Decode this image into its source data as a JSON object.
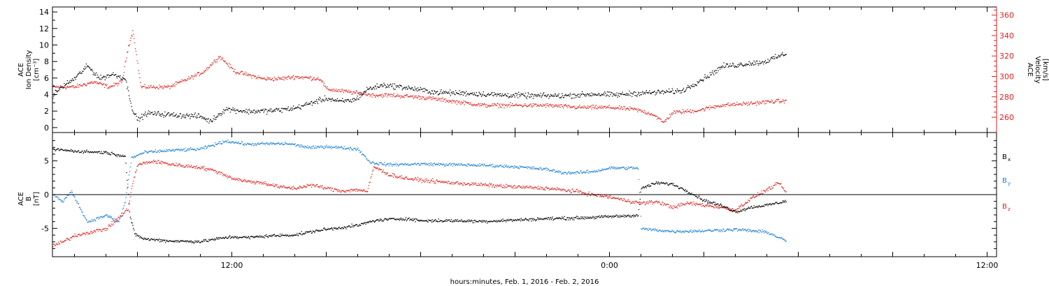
{
  "figure": {
    "xlabel": "hours:minutes, Feb.  1, 2016 - Feb.  2, 2016",
    "x_tick_labels": [
      {
        "hour": 12,
        "label": "12:00"
      },
      {
        "hour": 24,
        "label": "0:00"
      },
      {
        "hour": 36,
        "label": "12:00"
      }
    ],
    "xlim_hours": [
      6.3,
      36.3
    ],
    "data_end_hour": 29.6
  },
  "chart_data": [
    {
      "type": "scatter",
      "panel": "top",
      "ylabel_left": [
        "ACE",
        "Ion Density",
        "[cm⁻³]"
      ],
      "ylabel_right": [
        "ACE",
        "Velocity",
        "[km/s]"
      ],
      "ylim_left": [
        -0.6,
        14.6
      ],
      "yticks_left": [
        0,
        2,
        4,
        6,
        8,
        10,
        12,
        14
      ],
      "ylim_right": [
        245,
        368
      ],
      "yticks_right": [
        260,
        280,
        300,
        320,
        340,
        360
      ],
      "series": [
        {
          "name": "Ion Density",
          "axis": "left",
          "color": "#000000",
          "points": [
            [
              6.3,
              4.0
            ],
            [
              6.6,
              5.0
            ],
            [
              7.0,
              6.0
            ],
            [
              7.4,
              7.5
            ],
            [
              7.8,
              6.0
            ],
            [
              8.2,
              6.5
            ],
            [
              8.6,
              6.0
            ],
            [
              8.85,
              2.0
            ],
            [
              9.0,
              1.0
            ],
            [
              9.3,
              1.8
            ],
            [
              10.0,
              1.6
            ],
            [
              11.0,
              1.4
            ],
            [
              11.3,
              0.8
            ],
            [
              11.8,
              2.3
            ],
            [
              12.5,
              2.0
            ],
            [
              13.3,
              2.1
            ],
            [
              14.0,
              2.4
            ],
            [
              14.5,
              3.0
            ],
            [
              15.0,
              3.6
            ],
            [
              15.4,
              3.2
            ],
            [
              15.9,
              3.4
            ],
            [
              16.3,
              4.7
            ],
            [
              16.8,
              5.2
            ],
            [
              17.5,
              4.9
            ],
            [
              18.5,
              4.3
            ],
            [
              19.5,
              4.2
            ],
            [
              20.5,
              4.0
            ],
            [
              21.5,
              3.9
            ],
            [
              22.5,
              3.9
            ],
            [
              23.5,
              4.1
            ],
            [
              24.2,
              4.0
            ],
            [
              24.8,
              4.2
            ],
            [
              25.5,
              4.3
            ],
            [
              26.3,
              4.5
            ],
            [
              26.8,
              5.6
            ],
            [
              27.2,
              6.5
            ],
            [
              27.6,
              7.5
            ],
            [
              28.0,
              7.6
            ],
            [
              28.4,
              7.8
            ],
            [
              28.9,
              8.0
            ],
            [
              29.6,
              9.0
            ]
          ]
        },
        {
          "name": "Velocity",
          "axis": "right",
          "color": "#e02020",
          "points": [
            [
              6.3,
              290
            ],
            [
              7.0,
              290
            ],
            [
              7.6,
              295
            ],
            [
              8.1,
              290
            ],
            [
              8.5,
              295
            ],
            [
              8.7,
              330
            ],
            [
              8.85,
              345
            ],
            [
              9.1,
              290
            ],
            [
              10.0,
              290
            ],
            [
              10.6,
              298
            ],
            [
              11.1,
              305
            ],
            [
              11.6,
              320
            ],
            [
              12.1,
              305
            ],
            [
              13.0,
              298
            ],
            [
              13.5,
              298
            ],
            [
              14.0,
              300
            ],
            [
              14.8,
              298
            ],
            [
              15.0,
              288
            ],
            [
              16.0,
              284
            ],
            [
              16.5,
              282
            ],
            [
              17.0,
              282
            ],
            [
              18.0,
              280
            ],
            [
              19.0,
              276
            ],
            [
              20.0,
              272
            ],
            [
              21.0,
              272
            ],
            [
              22.0,
              272
            ],
            [
              23.0,
              270
            ],
            [
              24.0,
              270
            ],
            [
              24.8,
              268
            ],
            [
              25.4,
              263
            ],
            [
              25.7,
              255
            ],
            [
              26.0,
              265
            ],
            [
              26.8,
              267
            ],
            [
              27.5,
              272
            ],
            [
              28.5,
              274
            ],
            [
              29.2,
              276
            ],
            [
              29.6,
              276
            ]
          ]
        }
      ]
    },
    {
      "type": "scatter",
      "panel": "bottom",
      "ylabel_left": [
        "ACE",
        "B",
        "[nT]"
      ],
      "ylim": [
        -9.2,
        9.2
      ],
      "yticks": [
        -5,
        0,
        5
      ],
      "series": [
        {
          "name": "Bx",
          "label": "B",
          "subscript": "x",
          "color": "#000000",
          "points": [
            [
              6.3,
              6.8
            ],
            [
              7.0,
              6.5
            ],
            [
              7.5,
              6.4
            ],
            [
              8.0,
              6.3
            ],
            [
              8.3,
              6.0
            ],
            [
              8.6,
              5.8
            ],
            [
              8.75,
              -3.0
            ],
            [
              8.9,
              -5.8
            ],
            [
              9.2,
              -6.5
            ],
            [
              10.0,
              -6.8
            ],
            [
              11.0,
              -6.9
            ],
            [
              11.5,
              -6.5
            ],
            [
              12.0,
              -6.2
            ],
            [
              12.5,
              -6.3
            ],
            [
              13.0,
              -6.1
            ],
            [
              14.0,
              -5.9
            ],
            [
              14.8,
              -5.2
            ],
            [
              15.5,
              -4.8
            ],
            [
              16.0,
              -4.5
            ],
            [
              16.5,
              -3.8
            ],
            [
              17.0,
              -3.6
            ],
            [
              17.5,
              -3.5
            ],
            [
              18.0,
              -3.8
            ],
            [
              19.0,
              -3.8
            ],
            [
              20.0,
              -3.9
            ],
            [
              21.0,
              -3.7
            ],
            [
              22.0,
              -3.5
            ],
            [
              23.0,
              -3.4
            ],
            [
              24.0,
              -3.2
            ],
            [
              24.9,
              -3.0
            ],
            [
              25.0,
              1.0
            ],
            [
              25.5,
              1.8
            ],
            [
              26.0,
              1.6
            ],
            [
              26.5,
              0.5
            ],
            [
              27.0,
              -0.8
            ],
            [
              27.5,
              -1.5
            ],
            [
              28.0,
              -2.5
            ],
            [
              28.5,
              -1.8
            ],
            [
              29.0,
              -1.5
            ],
            [
              29.6,
              -0.9
            ]
          ]
        },
        {
          "name": "By",
          "label": "B",
          "subscript": "y",
          "color": "#1a7fd6",
          "points": [
            [
              6.3,
              0.2
            ],
            [
              6.6,
              -1.0
            ],
            [
              6.9,
              0.5
            ],
            [
              7.4,
              -4.0
            ],
            [
              8.0,
              -3.0
            ],
            [
              8.4,
              -4.0
            ],
            [
              8.6,
              -1.0
            ],
            [
              8.8,
              5.5
            ],
            [
              9.2,
              6.3
            ],
            [
              10.0,
              6.6
            ],
            [
              11.0,
              6.8
            ],
            [
              11.8,
              8.0
            ],
            [
              12.5,
              7.5
            ],
            [
              13.0,
              7.6
            ],
            [
              13.8,
              7.6
            ],
            [
              14.5,
              7.0
            ],
            [
              15.0,
              7.2
            ],
            [
              15.5,
              7.0
            ],
            [
              16.0,
              6.8
            ],
            [
              16.4,
              4.8
            ],
            [
              17.0,
              4.5
            ],
            [
              18.0,
              4.6
            ],
            [
              19.0,
              4.5
            ],
            [
              20.0,
              4.4
            ],
            [
              21.0,
              4.2
            ],
            [
              22.0,
              3.8
            ],
            [
              22.5,
              3.3
            ],
            [
              23.0,
              3.3
            ],
            [
              23.5,
              3.5
            ],
            [
              24.0,
              4.0
            ],
            [
              24.6,
              4.0
            ],
            [
              24.9,
              4.0
            ],
            [
              25.0,
              -5.0
            ],
            [
              25.5,
              -5.2
            ],
            [
              26.0,
              -5.4
            ],
            [
              27.0,
              -5.3
            ],
            [
              28.0,
              -5.1
            ],
            [
              29.0,
              -5.5
            ],
            [
              29.6,
              -6.8
            ]
          ]
        },
        {
          "name": "Bz",
          "label": "B",
          "subscript": "z",
          "color": "#e02020",
          "points": [
            [
              6.3,
              -7.5
            ],
            [
              6.6,
              -7.0
            ],
            [
              7.0,
              -6.0
            ],
            [
              7.5,
              -5.5
            ],
            [
              8.0,
              -5.0
            ],
            [
              8.5,
              -3.0
            ],
            [
              8.7,
              -2.0
            ],
            [
              8.8,
              1.0
            ],
            [
              9.0,
              4.5
            ],
            [
              9.5,
              5.0
            ],
            [
              10.0,
              4.6
            ],
            [
              10.5,
              4.3
            ],
            [
              11.0,
              4.1
            ],
            [
              11.5,
              3.5
            ],
            [
              12.0,
              2.5
            ],
            [
              12.5,
              2.0
            ],
            [
              13.0,
              1.8
            ],
            [
              13.5,
              1.2
            ],
            [
              14.0,
              1.0
            ],
            [
              14.5,
              1.5
            ],
            [
              15.0,
              1.0
            ],
            [
              15.5,
              0.6
            ],
            [
              16.0,
              0.8
            ],
            [
              16.3,
              0.5
            ],
            [
              16.5,
              4.2
            ],
            [
              17.0,
              3.0
            ],
            [
              17.5,
              2.5
            ],
            [
              18.0,
              2.2
            ],
            [
              19.0,
              1.8
            ],
            [
              20.0,
              1.5
            ],
            [
              21.0,
              1.2
            ],
            [
              22.0,
              1.0
            ],
            [
              23.0,
              0.5
            ],
            [
              23.5,
              0.0
            ],
            [
              24.0,
              -0.3
            ],
            [
              24.5,
              -0.8
            ],
            [
              25.0,
              -1.2
            ],
            [
              25.5,
              -1.0
            ],
            [
              26.0,
              -1.8
            ],
            [
              26.5,
              -1.2
            ],
            [
              27.0,
              -1.5
            ],
            [
              27.5,
              -1.8
            ],
            [
              28.0,
              -2.2
            ],
            [
              28.5,
              -0.5
            ],
            [
              29.0,
              0.8
            ],
            [
              29.4,
              1.8
            ],
            [
              29.6,
              0.2
            ]
          ]
        }
      ]
    }
  ]
}
